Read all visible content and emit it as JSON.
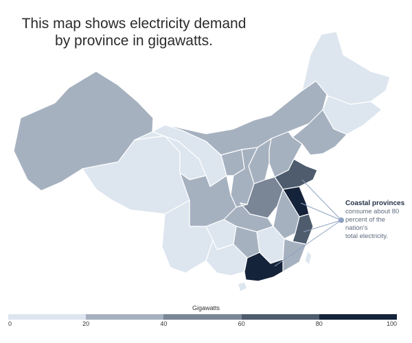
{
  "title": {
    "line1": "This map shows electricity demand",
    "line2": "by province in gigawatts."
  },
  "callout": {
    "heading": "Coastal provinces",
    "line1": "consume about 80",
    "line2": "percent of the nation's",
    "line3": "total electricity."
  },
  "legend": {
    "title": "Gigawatts",
    "ticks": [
      "0",
      "20",
      "40",
      "60",
      "80",
      "100"
    ],
    "colors": [
      "#dde6ef",
      "#a6b1c0",
      "#7a8696",
      "#4e5c6e",
      "#15233a"
    ]
  }
}
